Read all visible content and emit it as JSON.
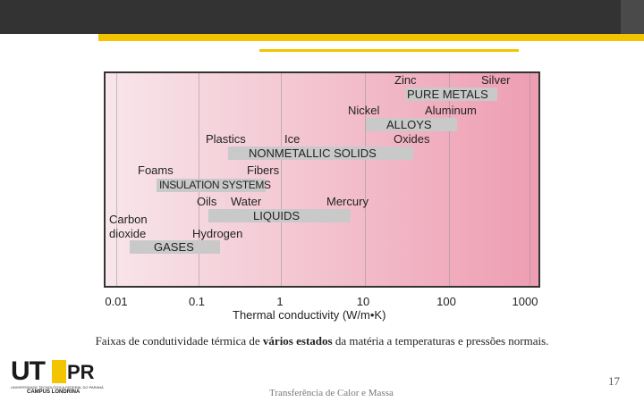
{
  "diagram": {
    "x_axis": {
      "title": "Thermal conductivity (W/m•K)",
      "scale": "log",
      "ticks": [
        "0.01",
        "0.1",
        "1",
        "10",
        "100",
        "1000"
      ]
    },
    "bars": [
      {
        "name": "PURE METALS",
        "x_from": 50,
        "x_to": 400
      },
      {
        "name": "ALLOYS",
        "x_from": 10,
        "x_to": 120
      },
      {
        "name": "NONMETALLIC SOLIDS",
        "x_from": 0.2,
        "x_to": 40
      },
      {
        "name": "INSULATION SYSTEMS",
        "x_from": 0.03,
        "x_to": 0.2
      },
      {
        "name": "LIQUIDS",
        "x_from": 0.15,
        "x_to": 7
      },
      {
        "name": "GASES",
        "x_from": 0.02,
        "x_to": 0.2
      }
    ],
    "labels": {
      "zinc": "Zinc",
      "silver": "Silver",
      "nickel": "Nickel",
      "aluminum": "Aluminum",
      "plastics": "Plastics",
      "ice": "Ice",
      "oxides": "Oxides",
      "foams": "Foams",
      "fibers": "Fibers",
      "oils": "Oils",
      "water": "Water",
      "mercury": "Mercury",
      "carbon": "Carbon",
      "dioxide": "dioxide",
      "hydrogen": "Hydrogen"
    }
  },
  "caption": {
    "before": "Faixas de condutividade térmica de ",
    "bold": "vários estados",
    "after": " da matéria a temperaturas e pressões normais."
  },
  "logo": {
    "ut": "UT",
    "f": "F",
    "pr": "PR",
    "small": "UNIVERSIDADE TECNOLÓGICA FEDERAL DO PARANÁ",
    "campus": "CAMPUS LONDRINA"
  },
  "footer": {
    "course": "Transferência de Calor e Massa",
    "page": "17"
  },
  "colors": {
    "accent": "#f2c500",
    "bar": "#c9c9c9"
  }
}
